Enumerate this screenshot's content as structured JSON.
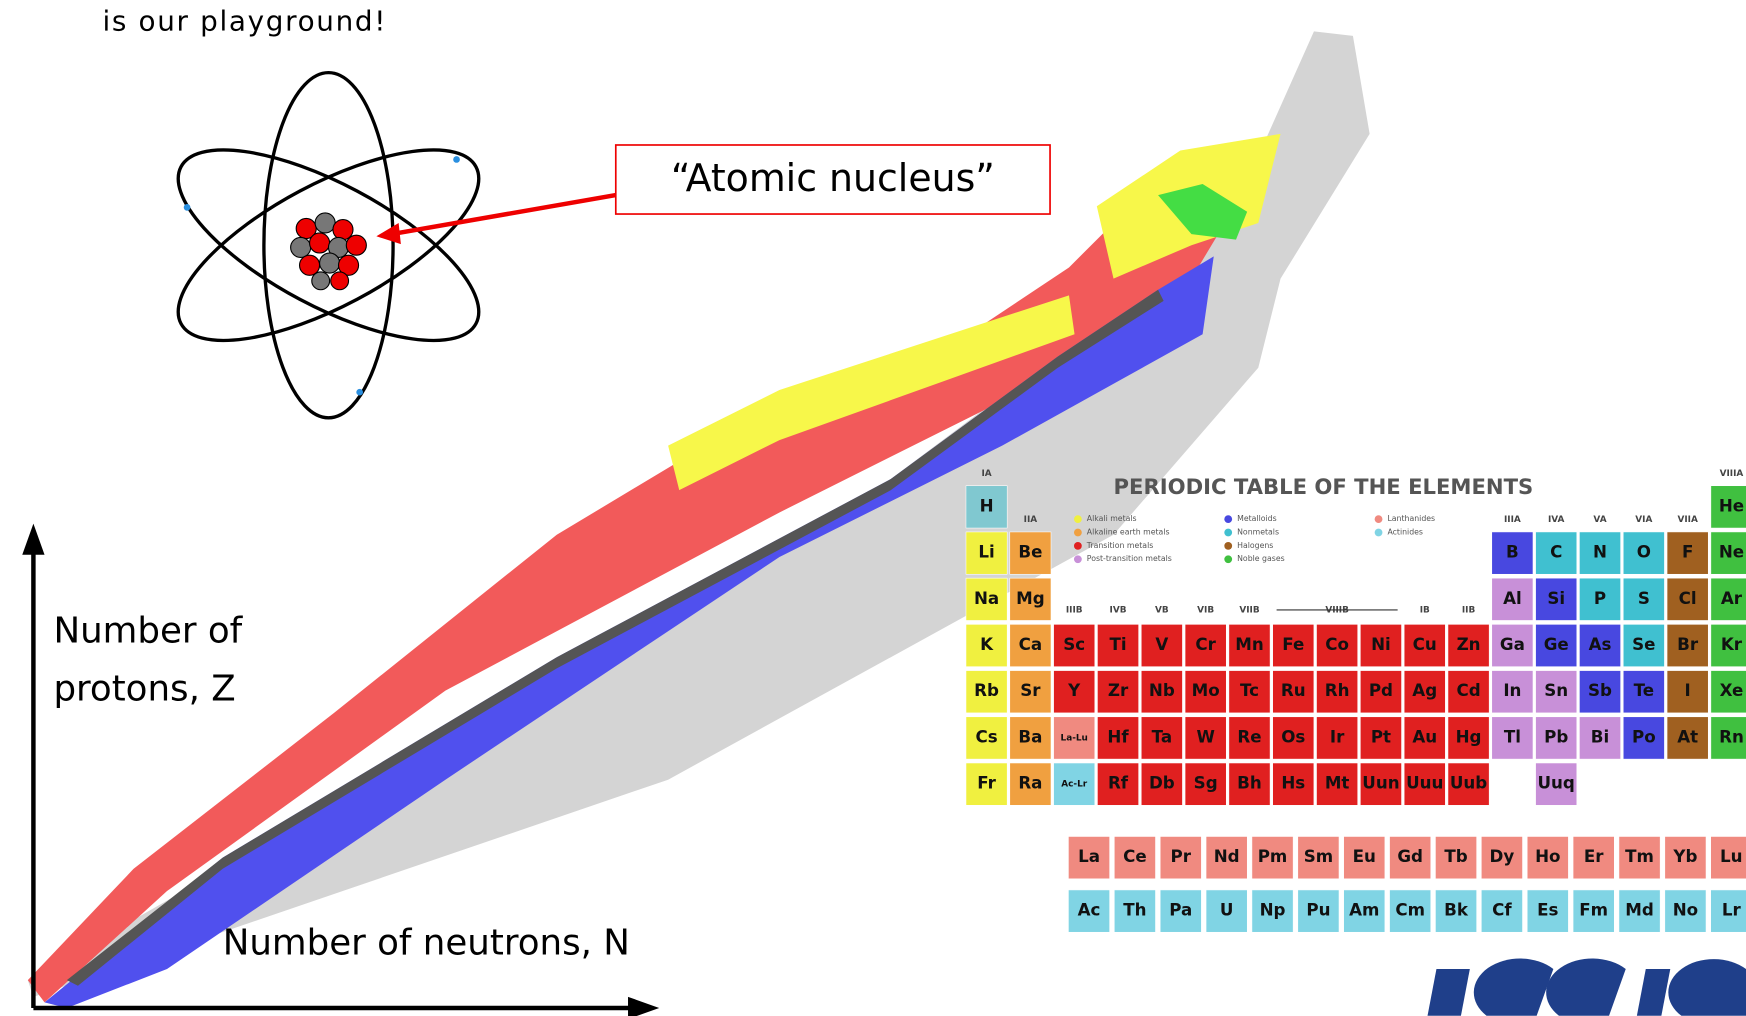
{
  "header": {
    "text": "is our playground!"
  },
  "callout": {
    "text": "“Atomic nucleus”"
  },
  "axes": {
    "y_label": [
      "Number of",
      "protons, Z"
    ],
    "x_label": "Number of neutrons, N"
  },
  "periodic_table": {
    "title": "PERIODIC TABLE OF THE ELEMENTS",
    "legend": [
      "Alkali metals",
      "Alkaline earth metals",
      "Transition metals",
      "Post-transition metals",
      "Metalloids",
      "Nonmetals",
      "Halogens",
      "Noble gases",
      "Lanthanides",
      "Actinides"
    ],
    "legend_colors": [
      "#f0f040",
      "#f0a040",
      "#e02020",
      "#c890d8",
      "#4848e0",
      "#40c0d0",
      "#a06020",
      "#40c040",
      "#f08a80",
      "#80d4e4"
    ],
    "group_labels": [
      "IA",
      "IIA",
      "IIIB",
      "IVB",
      "VB",
      "VIB",
      "VIIB",
      null,
      "VIIIB",
      null,
      "IB",
      "IIB",
      "IIIA",
      "IVA",
      "VA",
      "VIA",
      "VIIA",
      "VIIIA"
    ],
    "rows": [
      [
        {
          "symbol": "H",
          "color": "#80c8d0"
        },
        null,
        null,
        null,
        null,
        null,
        null,
        null,
        null,
        null,
        null,
        null,
        null,
        null,
        null,
        null,
        null,
        {
          "symbol": "He",
          "color": "#40c040"
        }
      ],
      [
        {
          "symbol": "Li",
          "color": "#f0f040"
        },
        {
          "symbol": "Be",
          "color": "#f0a040"
        },
        null,
        null,
        null,
        null,
        null,
        null,
        null,
        null,
        null,
        null,
        {
          "symbol": "B",
          "color": "#4848e0"
        },
        {
          "symbol": "C",
          "color": "#40c0d0"
        },
        {
          "symbol": "N",
          "color": "#40c0d0"
        },
        {
          "symbol": "O",
          "color": "#40c0d0"
        },
        {
          "symbol": "F",
          "color": "#a06020"
        },
        {
          "symbol": "Ne",
          "color": "#40c040"
        }
      ],
      [
        {
          "symbol": "Na",
          "color": "#f0f040"
        },
        {
          "symbol": "Mg",
          "color": "#f0a040"
        },
        null,
        null,
        null,
        null,
        null,
        null,
        null,
        null,
        null,
        null,
        {
          "symbol": "Al",
          "color": "#c890d8"
        },
        {
          "symbol": "Si",
          "color": "#4848e0"
        },
        {
          "symbol": "P",
          "color": "#40c0d0"
        },
        {
          "symbol": "S",
          "color": "#40c0d0"
        },
        {
          "symbol": "Cl",
          "color": "#a06020"
        },
        {
          "symbol": "Ar",
          "color": "#40c040"
        }
      ],
      [
        {
          "symbol": "K",
          "color": "#f0f040"
        },
        {
          "symbol": "Ca",
          "color": "#f0a040"
        },
        {
          "symbol": "Sc",
          "color": "#e02020"
        },
        {
          "symbol": "Ti",
          "color": "#e02020"
        },
        {
          "symbol": "V",
          "color": "#e02020"
        },
        {
          "symbol": "Cr",
          "color": "#e02020"
        },
        {
          "symbol": "Mn",
          "color": "#e02020"
        },
        {
          "symbol": "Fe",
          "color": "#e02020"
        },
        {
          "symbol": "Co",
          "color": "#e02020"
        },
        {
          "symbol": "Ni",
          "color": "#e02020"
        },
        {
          "symbol": "Cu",
          "color": "#e02020"
        },
        {
          "symbol": "Zn",
          "color": "#e02020"
        },
        {
          "symbol": "Ga",
          "color": "#c890d8"
        },
        {
          "symbol": "Ge",
          "color": "#4848e0"
        },
        {
          "symbol": "As",
          "color": "#4848e0"
        },
        {
          "symbol": "Se",
          "color": "#40c0d0"
        },
        {
          "symbol": "Br",
          "color": "#a06020"
        },
        {
          "symbol": "Kr",
          "color": "#40c040"
        }
      ],
      [
        {
          "symbol": "Rb",
          "color": "#f0f040"
        },
        {
          "symbol": "Sr",
          "color": "#f0a040"
        },
        {
          "symbol": "Y",
          "color": "#e02020"
        },
        {
          "symbol": "Zr",
          "color": "#e02020"
        },
        {
          "symbol": "Nb",
          "color": "#e02020"
        },
        {
          "symbol": "Mo",
          "color": "#e02020"
        },
        {
          "symbol": "Tc",
          "color": "#e02020"
        },
        {
          "symbol": "Ru",
          "color": "#e02020"
        },
        {
          "symbol": "Rh",
          "color": "#e02020"
        },
        {
          "symbol": "Pd",
          "color": "#e02020"
        },
        {
          "symbol": "Ag",
          "color": "#e02020"
        },
        {
          "symbol": "Cd",
          "color": "#e02020"
        },
        {
          "symbol": "In",
          "color": "#c890d8"
        },
        {
          "symbol": "Sn",
          "color": "#c890d8"
        },
        {
          "symbol": "Sb",
          "color": "#4848e0"
        },
        {
          "symbol": "Te",
          "color": "#4848e0"
        },
        {
          "symbol": "I",
          "color": "#a06020"
        },
        {
          "symbol": "Xe",
          "color": "#40c040"
        }
      ],
      [
        {
          "symbol": "Cs",
          "color": "#f0f040"
        },
        {
          "symbol": "Ba",
          "color": "#f0a040"
        },
        {
          "symbol": "La-Lu",
          "color": "#f08a80"
        },
        {
          "symbol": "Hf",
          "color": "#e02020"
        },
        {
          "symbol": "Ta",
          "color": "#e02020"
        },
        {
          "symbol": "W",
          "color": "#e02020"
        },
        {
          "symbol": "Re",
          "color": "#e02020"
        },
        {
          "symbol": "Os",
          "color": "#e02020"
        },
        {
          "symbol": "Ir",
          "color": "#e02020"
        },
        {
          "symbol": "Pt",
          "color": "#e02020"
        },
        {
          "symbol": "Au",
          "color": "#e02020"
        },
        {
          "symbol": "Hg",
          "color": "#e02020"
        },
        {
          "symbol": "Tl",
          "color": "#c890d8"
        },
        {
          "symbol": "Pb",
          "color": "#c890d8"
        },
        {
          "symbol": "Bi",
          "color": "#c890d8"
        },
        {
          "symbol": "Po",
          "color": "#4848e0"
        },
        {
          "symbol": "At",
          "color": "#a06020"
        },
        {
          "symbol": "Rn",
          "color": "#40c040"
        }
      ],
      [
        {
          "symbol": "Fr",
          "color": "#f0f040"
        },
        {
          "symbol": "Ra",
          "color": "#f0a040"
        },
        {
          "symbol": "Ac-Lr",
          "color": "#80d4e4"
        },
        {
          "symbol": "Rf",
          "color": "#e02020"
        },
        {
          "symbol": "Db",
          "color": "#e02020"
        },
        {
          "symbol": "Sg",
          "color": "#e02020"
        },
        {
          "symbol": "Bh",
          "color": "#e02020"
        },
        {
          "symbol": "Hs",
          "color": "#e02020"
        },
        {
          "symbol": "Mt",
          "color": "#e02020"
        },
        {
          "symbol": "Uun",
          "color": "#e02020"
        },
        {
          "symbol": "Uuu",
          "color": "#e02020"
        },
        {
          "symbol": "Uub",
          "color": "#e02020"
        },
        null,
        {
          "symbol": "Uuq",
          "color": "#c890d8"
        },
        null,
        null,
        null,
        null
      ]
    ],
    "lanthanides": [
      "La",
      "Ce",
      "Pr",
      "Nd",
      "Pm",
      "Sm",
      "Eu",
      "Gd",
      "Tb",
      "Dy",
      "Ho",
      "Er",
      "Tm",
      "Yb",
      "Lu"
    ],
    "actinides": [
      "Ac",
      "Th",
      "Pa",
      "U",
      "Np",
      "Pu",
      "Am",
      "Cm",
      "Bk",
      "Cf",
      "Es",
      "Fm",
      "Md",
      "No",
      "Lr"
    ],
    "lanthanide_color": "#f08a80",
    "actinide_color": "#80d4e4"
  }
}
